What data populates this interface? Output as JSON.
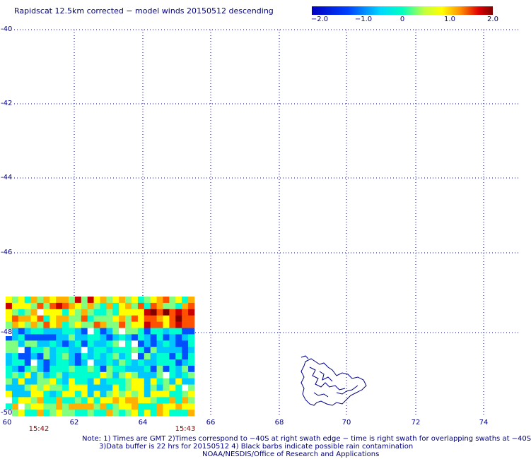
{
  "title": "Rapidscat 12.5km corrected − model winds 20150512 descending",
  "colorbar": {
    "labels": [
      "−2.0",
      "−1.0",
      "0",
      "1.0",
      "2.0"
    ],
    "colors": [
      "#0000c8",
      "#0050ff",
      "#00c8ff",
      "#00ffd0",
      "#80ff80",
      "#ffff00",
      "#ffb000",
      "#ff5000",
      "#c80000",
      "#800000"
    ]
  },
  "lon_ticks": [
    "60",
    "62",
    "64",
    "66",
    "68",
    "70",
    "72",
    "74"
  ],
  "lat_ticks": [
    "-40",
    "-42",
    "-44",
    "-46",
    "-48",
    "-50"
  ],
  "times": [
    "15:42",
    "15:43"
  ],
  "notes": [
    "Note: 1) Times are GMT 2)Times correspond to −40S at right swath edge − time is right swath for overlapping swaths at −40S",
    "3)Data buffer is 22 hrs for 20150512 4) Black barbs indicate possible rain contamination",
    "NOAA/NESDIS/Office of Research and Applications"
  ]
}
